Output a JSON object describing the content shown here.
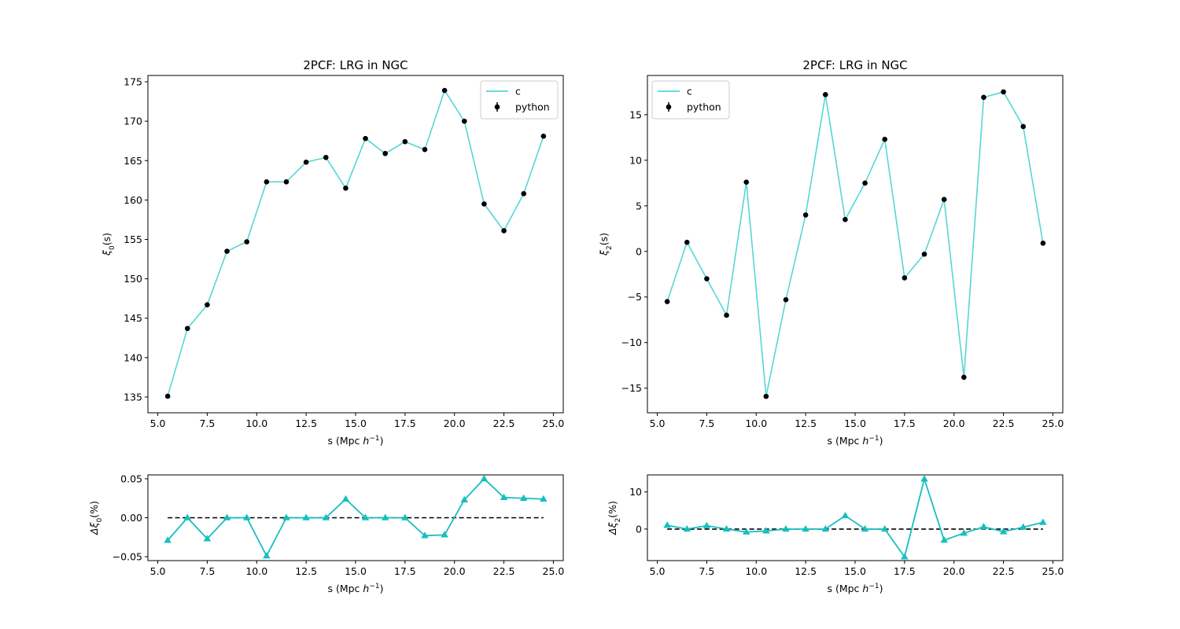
{
  "chart_data": [
    {
      "id": "xi0",
      "type": "line",
      "title": "2PCF: LRG in NGC",
      "xlabel_pre": "s (Mpc ",
      "xlabel_var": "h",
      "xlabel_sup": "−1",
      "xlabel_post": ")",
      "ylabel_pre": "ξ",
      "ylabel_sub": "0",
      "ylabel_post": "(s)",
      "xlim": [
        4.5,
        25.5
      ],
      "ylim": [
        133.0,
        175.8
      ],
      "xticks": [
        5.0,
        7.5,
        10.0,
        12.5,
        15.0,
        17.5,
        20.0,
        22.5,
        25.0
      ],
      "xtick_labels": [
        "5.0",
        "7.5",
        "10.0",
        "12.5",
        "15.0",
        "17.5",
        "20.0",
        "22.5",
        "25.0"
      ],
      "yticks": [
        135,
        140,
        145,
        150,
        155,
        160,
        165,
        170,
        175
      ],
      "ytick_labels": [
        "135",
        "140",
        "145",
        "150",
        "155",
        "160",
        "165",
        "170",
        "175"
      ],
      "legend_position": "top-right",
      "x": [
        5.5,
        6.5,
        7.5,
        8.5,
        9.5,
        10.5,
        11.5,
        12.5,
        13.5,
        14.5,
        15.5,
        16.5,
        17.5,
        18.5,
        19.5,
        20.5,
        21.5,
        22.5,
        23.5,
        24.5
      ],
      "series": [
        {
          "name": "c",
          "style": "line",
          "color": "#56d6d6",
          "values": [
            135.1,
            143.7,
            146.7,
            153.5,
            154.7,
            162.3,
            162.3,
            164.8,
            165.4,
            161.5,
            167.8,
            165.9,
            167.4,
            166.4,
            173.9,
            170.0,
            159.5,
            156.1,
            160.8,
            168.1
          ]
        },
        {
          "name": "python",
          "style": "points",
          "color": "#000000",
          "values": [
            135.1,
            143.7,
            146.7,
            153.5,
            154.7,
            162.3,
            162.3,
            164.8,
            165.4,
            161.5,
            167.8,
            165.9,
            167.4,
            166.4,
            173.9,
            170.0,
            159.5,
            156.1,
            160.8,
            168.1
          ]
        }
      ]
    },
    {
      "id": "xi2",
      "type": "line",
      "title": "2PCF: LRG in NGC",
      "xlabel_pre": "s (Mpc ",
      "xlabel_var": "h",
      "xlabel_sup": "−1",
      "xlabel_post": ")",
      "ylabel_pre": "ξ",
      "ylabel_sub": "2",
      "ylabel_post": "(s)",
      "xlim": [
        4.5,
        25.5
      ],
      "ylim": [
        -17.7,
        19.3
      ],
      "xticks": [
        5.0,
        7.5,
        10.0,
        12.5,
        15.0,
        17.5,
        20.0,
        22.5,
        25.0
      ],
      "xtick_labels": [
        "5.0",
        "7.5",
        "10.0",
        "12.5",
        "15.0",
        "17.5",
        "20.0",
        "22.5",
        "25.0"
      ],
      "yticks": [
        -15,
        -10,
        -5,
        0,
        5,
        10,
        15
      ],
      "ytick_labels": [
        "−15",
        "−10",
        "−5",
        "0",
        "5",
        "10",
        "15"
      ],
      "legend_position": "top-left",
      "x": [
        5.5,
        6.5,
        7.5,
        8.5,
        9.5,
        10.5,
        11.5,
        12.5,
        13.5,
        14.5,
        15.5,
        16.5,
        17.5,
        18.5,
        19.5,
        20.5,
        21.5,
        22.5,
        23.5,
        24.5
      ],
      "series": [
        {
          "name": "c",
          "style": "line",
          "color": "#56d6d6",
          "values": [
            -5.5,
            1.0,
            -3.0,
            -7.0,
            7.6,
            -15.9,
            -5.3,
            4.0,
            17.2,
            3.5,
            7.5,
            12.3,
            -2.9,
            -0.3,
            5.7,
            -13.8,
            16.9,
            17.5,
            13.7,
            0.9
          ]
        },
        {
          "name": "python",
          "style": "points",
          "color": "#000000",
          "values": [
            -5.5,
            1.0,
            -3.0,
            -7.0,
            7.6,
            -15.9,
            -5.3,
            4.0,
            17.2,
            3.5,
            7.5,
            12.3,
            -2.9,
            -0.3,
            5.7,
            -13.8,
            16.9,
            17.5,
            13.7,
            0.9
          ]
        }
      ]
    },
    {
      "id": "dxi0",
      "type": "line",
      "title": "",
      "xlabel_pre": "s (Mpc ",
      "xlabel_var": "h",
      "xlabel_sup": "−1",
      "xlabel_post": ")",
      "ylabel_pre": "Δξ",
      "ylabel_sub": "0",
      "ylabel_post": "(%)",
      "xlim": [
        4.5,
        25.5
      ],
      "ylim": [
        -0.055,
        0.055
      ],
      "xticks": [
        5.0,
        7.5,
        10.0,
        12.5,
        15.0,
        17.5,
        20.0,
        22.5,
        25.0
      ],
      "xtick_labels": [
        "5.0",
        "7.5",
        "10.0",
        "12.5",
        "15.0",
        "17.5",
        "20.0",
        "22.5",
        "25.0"
      ],
      "yticks": [
        -0.05,
        0.0,
        0.05
      ],
      "ytick_labels": [
        "−0.05",
        "0.00",
        "0.05"
      ],
      "reference_line": 0,
      "x": [
        5.5,
        6.5,
        7.5,
        8.5,
        9.5,
        10.5,
        11.5,
        12.5,
        13.5,
        14.5,
        15.5,
        16.5,
        17.5,
        18.5,
        19.5,
        20.5,
        21.5,
        22.5,
        23.5,
        24.5
      ],
      "series": [
        {
          "style": "line-triangles",
          "color": "#17bfbf",
          "values": [
            -0.029,
            0.0,
            -0.027,
            0.0,
            0.0,
            -0.049,
            0.0,
            0.0,
            0.0,
            0.024,
            0.0,
            0.0,
            0.0,
            -0.023,
            -0.022,
            0.023,
            0.05,
            0.026,
            0.025,
            0.024
          ]
        }
      ]
    },
    {
      "id": "dxi2",
      "type": "line",
      "title": "",
      "xlabel_pre": "s (Mpc ",
      "xlabel_var": "h",
      "xlabel_sup": "−1",
      "xlabel_post": ")",
      "ylabel_pre": "Δξ",
      "ylabel_sub": "2",
      "ylabel_post": "(%)",
      "xlim": [
        4.5,
        25.5
      ],
      "ylim": [
        -8.5,
        14.6
      ],
      "xticks": [
        5.0,
        7.5,
        10.0,
        12.5,
        15.0,
        17.5,
        20.0,
        22.5,
        25.0
      ],
      "xtick_labels": [
        "5.0",
        "7.5",
        "10.0",
        "12.5",
        "15.0",
        "17.5",
        "20.0",
        "22.5",
        "25.0"
      ],
      "yticks": [
        0,
        10
      ],
      "ytick_labels": [
        "0",
        "10"
      ],
      "reference_line": 0,
      "x": [
        5.5,
        6.5,
        7.5,
        8.5,
        9.5,
        10.5,
        11.5,
        12.5,
        13.5,
        14.5,
        15.5,
        16.5,
        17.5,
        18.5,
        19.5,
        20.5,
        21.5,
        22.5,
        23.5,
        24.5
      ],
      "series": [
        {
          "style": "line-triangles",
          "color": "#17bfbf",
          "values": [
            1.0,
            0.0,
            0.9,
            0.0,
            -0.8,
            -0.5,
            0.0,
            0.0,
            0.0,
            3.6,
            0.0,
            0.0,
            -7.5,
            13.5,
            -3.0,
            -1.1,
            0.6,
            -0.7,
            0.5,
            1.8
          ]
        }
      ]
    }
  ]
}
